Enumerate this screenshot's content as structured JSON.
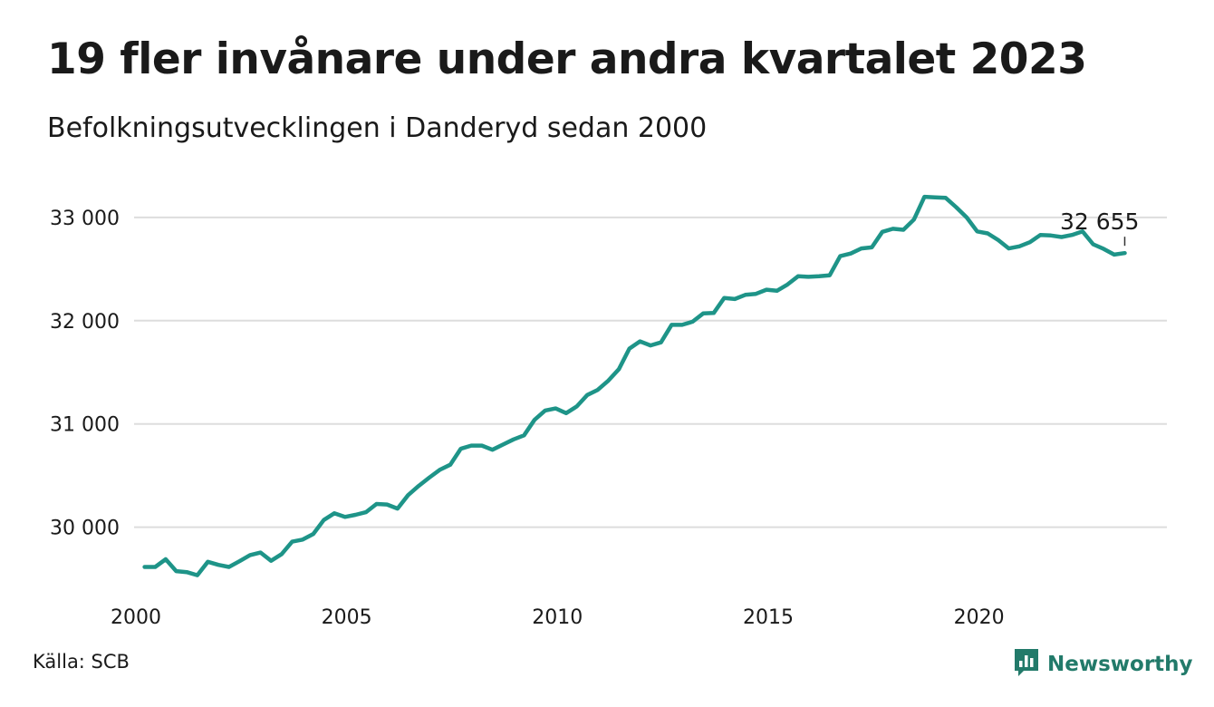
{
  "title": "19 fler invånare under andra kvartalet 2023",
  "subtitle": "Befolkningsutvecklingen i Danderyd sedan 2000",
  "source": "Källa: SCB",
  "brand": {
    "name": "Newsworthy",
    "icon": "newsworthy-logo-icon"
  },
  "colors": {
    "line": "#1e9488",
    "grid": "#dddddd",
    "text": "#1a1a1a",
    "brand": "#227a6a"
  },
  "chart_data": {
    "type": "line",
    "title": "19 fler invånare under andra kvartalet 2023",
    "subtitle": "Befolkningsutvecklingen i Danderyd sedan 2000",
    "xlabel": "",
    "ylabel": "",
    "xlim": [
      2000,
      2024.5
    ],
    "ylim": [
      29400,
      33350
    ],
    "x_ticks": [
      2000,
      2005,
      2010,
      2015,
      2020
    ],
    "x_tick_labels": [
      "2000",
      "2005",
      "2010",
      "2015",
      "2020"
    ],
    "y_ticks": [
      30000,
      31000,
      32000,
      33000
    ],
    "y_tick_labels": [
      "30 000",
      "31 000",
      "32 000",
      "33 000"
    ],
    "grid": true,
    "legend": "none",
    "series": [
      {
        "x_start": 2000.25,
        "x_step": 0.25,
        "values": [
          29615,
          29615,
          29690,
          29575,
          29565,
          29535,
          29665,
          29635,
          29615,
          29670,
          29730,
          29755,
          29675,
          29740,
          29860,
          29880,
          29935,
          30070,
          30135,
          30100,
          30120,
          30145,
          30225,
          30220,
          30180,
          30310,
          30400,
          30480,
          30555,
          30605,
          30760,
          30790,
          30790,
          30750,
          30800,
          30850,
          30890,
          31040,
          31130,
          31150,
          31105,
          31170,
          31280,
          31330,
          31420,
          31530,
          31730,
          31800,
          31760,
          31790,
          31960,
          31960,
          31990,
          32070,
          32075,
          32220,
          32210,
          32250,
          32260,
          32300,
          32290,
          32350,
          32430,
          32425,
          32430,
          32440,
          32625,
          32650,
          32700,
          32710,
          32860,
          32890,
          32880,
          32980,
          33200,
          33195,
          33190,
          33100,
          33000,
          32865,
          32845,
          32780,
          32700,
          32720,
          32760,
          32830,
          32825,
          32810,
          32830,
          32865,
          32740,
          32695,
          32640,
          32655
        ]
      }
    ],
    "annotations": [
      {
        "label": "32 655",
        "x": 2023.5,
        "y": 32655
      }
    ]
  }
}
